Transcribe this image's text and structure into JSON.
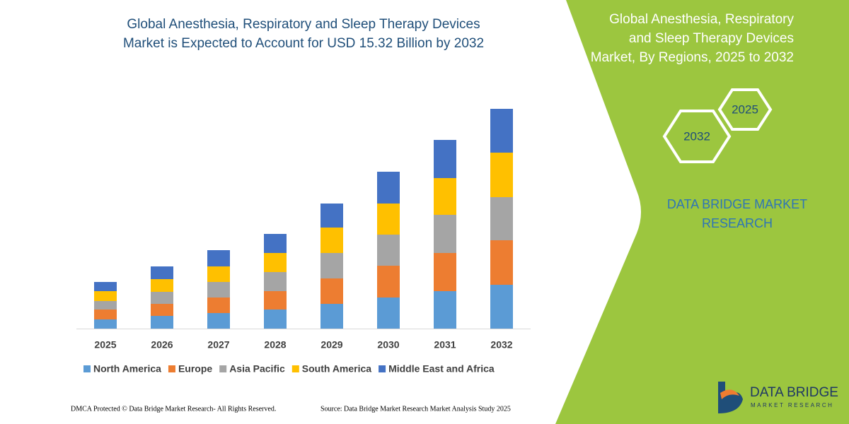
{
  "chart_data": {
    "type": "stacked_bar",
    "title": [
      "Global Anesthesia, Respiratory and Sleep Therapy Devices",
      "Market is Expected to Account for USD 15.32 Billion by 2032"
    ],
    "categories": [
      "2025",
      "2026",
      "2027",
      "2028",
      "2029",
      "2030",
      "2031",
      "2032"
    ],
    "series": [
      {
        "name": "North America",
        "color": "#5b9bd5",
        "values": [
          13,
          18,
          22,
          27,
          35,
          44,
          53,
          62
        ]
      },
      {
        "name": "Europe",
        "color": "#ed7d31",
        "values": [
          14,
          17,
          22,
          26,
          36,
          45,
          54,
          63
        ]
      },
      {
        "name": "Asia Pacific",
        "color": "#a5a5a5",
        "values": [
          12,
          17,
          22,
          27,
          36,
          44,
          54,
          61
        ]
      },
      {
        "name": "South America",
        "color": "#ffc000",
        "values": [
          14,
          18,
          22,
          27,
          36,
          44,
          52,
          63
        ]
      },
      {
        "name": "Middle East and Africa",
        "color": "#4472c4",
        "values": [
          13,
          18,
          23,
          27,
          34,
          45,
          54,
          62
        ]
      }
    ]
  },
  "side_panel": {
    "title": [
      "Global Anesthesia, Respiratory",
      "and Sleep Therapy Devices",
      "Market, By Regions, 2025 to 2032"
    ],
    "hexagons": [
      "2025",
      "2032"
    ],
    "brand": [
      "DATA BRIDGE MARKET",
      "RESEARCH"
    ]
  },
  "logo": {
    "name": "DATA BRIDGE",
    "tagline": "MARKET RESEARCH"
  },
  "footer": {
    "copyright": "DMCA Protected © Data Bridge Market Research- All Rights Reserved.",
    "source": "Source: Data Bridge Market Research Market Analysis Study 2025"
  }
}
